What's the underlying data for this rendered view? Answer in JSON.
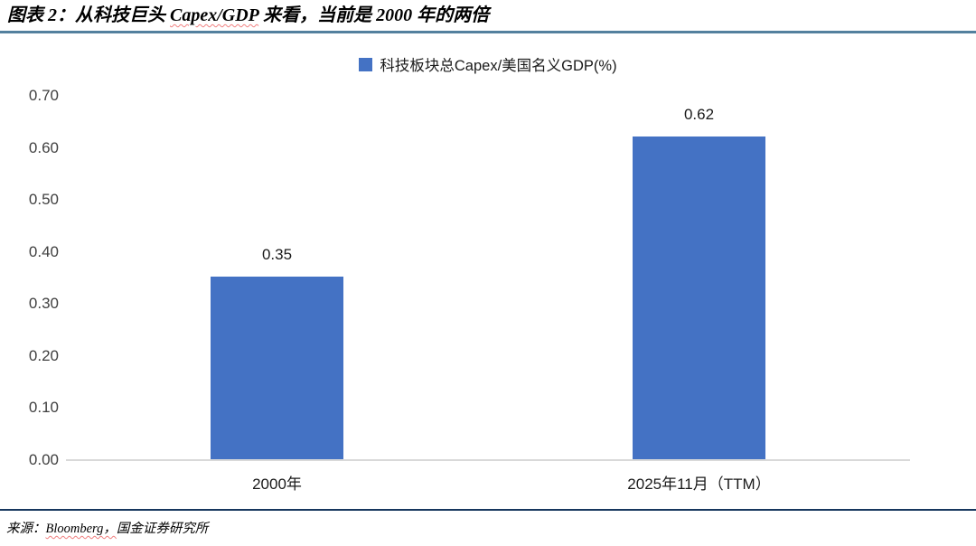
{
  "title": {
    "seg1": "图表 2：从科技巨头 ",
    "seg2": "Capex/GDP",
    "seg3": " 来看，当前是 2000 年的两倍"
  },
  "legend": {
    "label": "科技板块总Capex/美国名义GDP(%)"
  },
  "source": {
    "seg1": "来源：",
    "seg2": "Bloomberg，",
    "seg3": "国金证券研究所"
  },
  "colors": {
    "bar": "#4472C4",
    "title_rule": "#53809E",
    "footer_rule": "#17375E",
    "axis_line": "#D9D9D9"
  },
  "chart_data": {
    "type": "bar",
    "title": "图表2：从科技巨头Capex/GDP来看，当前是2000年的两倍",
    "series": [
      {
        "name": "科技板块总Capex/美国名义GDP(%)",
        "values": [
          0.35,
          0.62
        ]
      }
    ],
    "categories": [
      "2000年",
      "2025年11月（TTM）"
    ],
    "value_labels": [
      "0.35",
      "0.62"
    ],
    "yticks": [
      "0.70",
      "0.60",
      "0.50",
      "0.40",
      "0.30",
      "0.20",
      "0.10",
      "0.00"
    ],
    "ylim": [
      0,
      0.7
    ],
    "xlabel": "",
    "ylabel": "",
    "grid": false,
    "legend_position": "top-center"
  }
}
